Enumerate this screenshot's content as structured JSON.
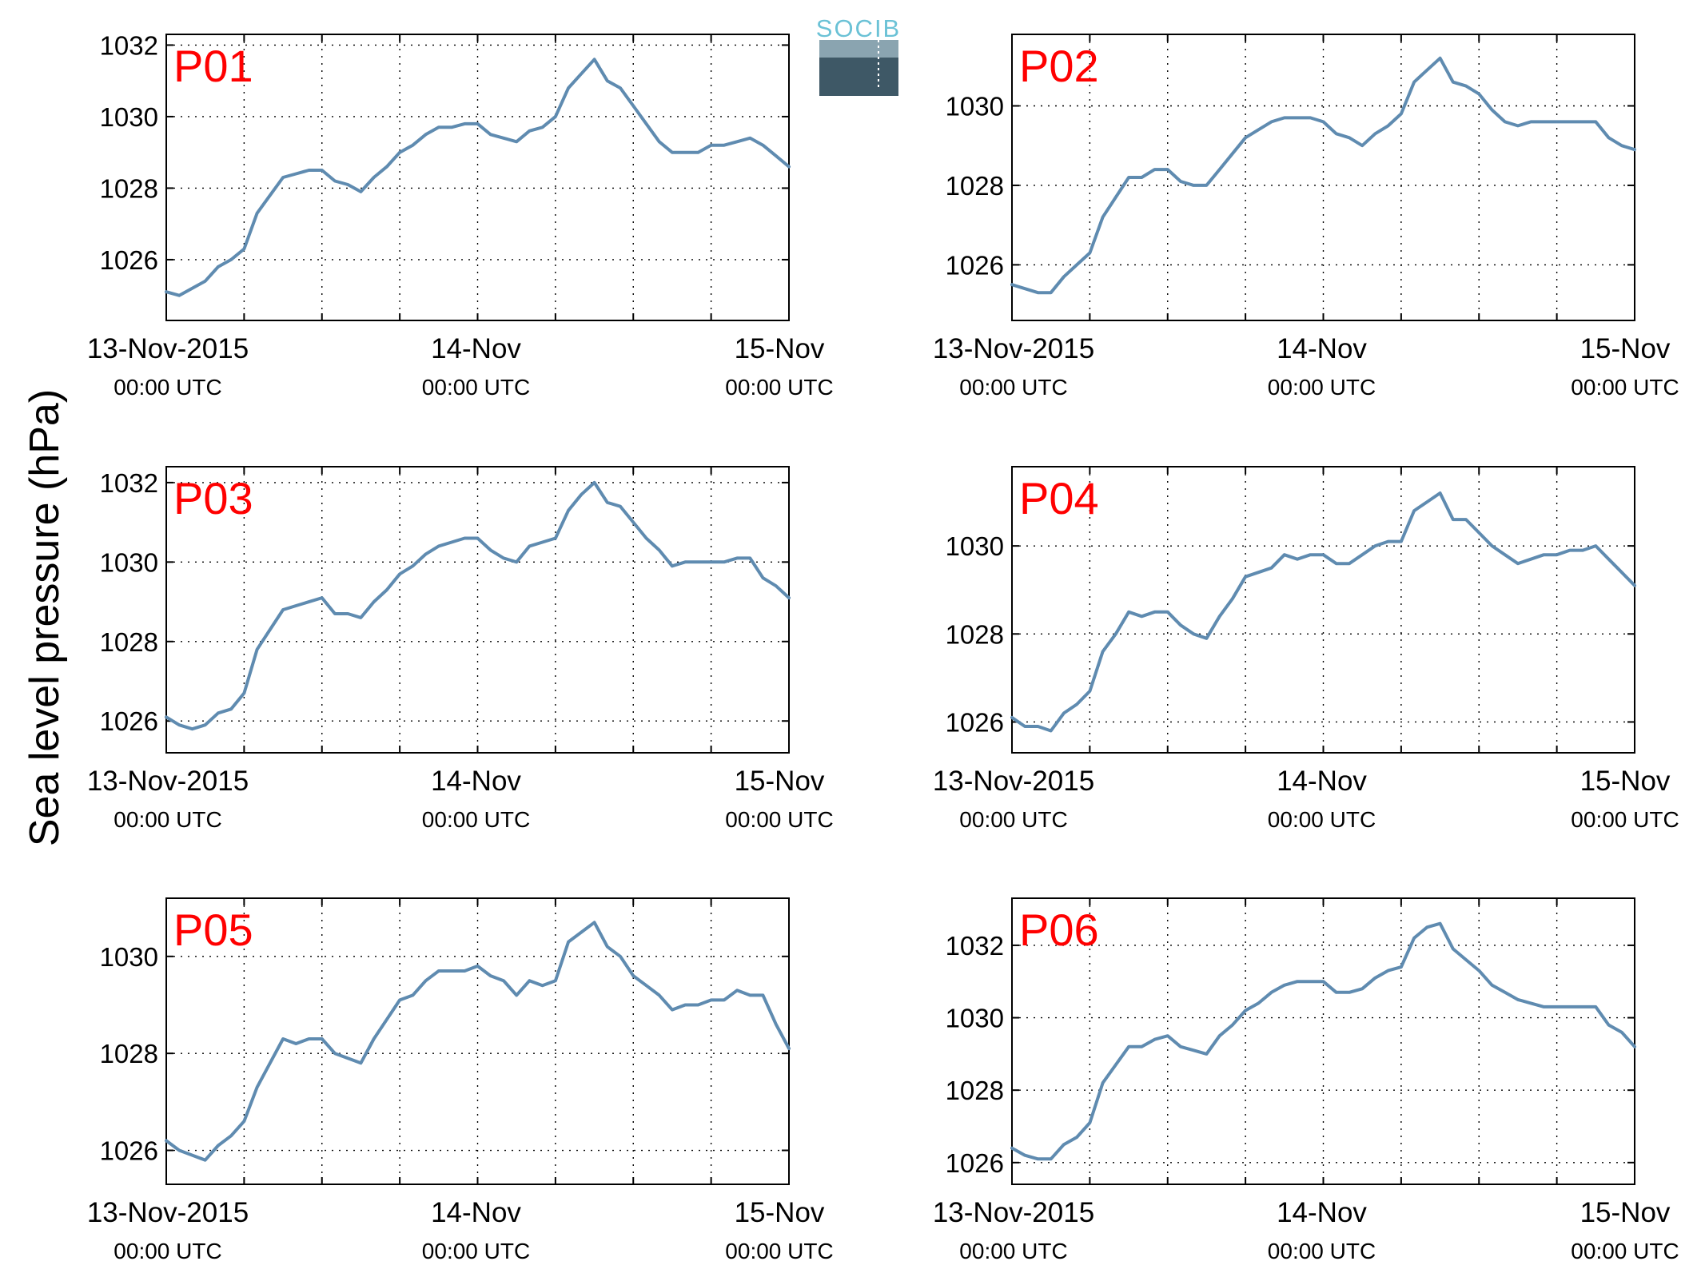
{
  "figure": {
    "ylabel": "Sea level pressure (hPa)",
    "logo_text": "SOCIB",
    "line_color": "#5f8bb0",
    "title_color": "#ff0000"
  },
  "chart_data": [
    {
      "type": "line",
      "title": "P01",
      "xlim": [
        0,
        48
      ],
      "ylim": [
        1024.3,
        1032.3
      ],
      "yticks": [
        1026,
        1028,
        1030,
        1032
      ],
      "xticks": [
        0,
        24,
        48
      ],
      "xticklabels": [
        [
          "13-Nov-2015",
          "00:00 UTC"
        ],
        [
          "14-Nov",
          "00:00 UTC"
        ],
        [
          "15-Nov",
          "00:00 UTC"
        ]
      ],
      "grid": true,
      "x": [
        0,
        1,
        2,
        3,
        4,
        5,
        6,
        7,
        8,
        9,
        10,
        11,
        12,
        13,
        14,
        15,
        16,
        17,
        18,
        19,
        20,
        21,
        22,
        23,
        24,
        25,
        26,
        27,
        28,
        29,
        30,
        31,
        32,
        33,
        34,
        35,
        36,
        37,
        38,
        39,
        40,
        41,
        42,
        43,
        44,
        45,
        46,
        47,
        48
      ],
      "values": [
        1025.1,
        1025.0,
        1025.2,
        1025.4,
        1025.8,
        1026.0,
        1026.3,
        1027.3,
        1027.8,
        1028.3,
        1028.4,
        1028.5,
        1028.5,
        1028.2,
        1028.1,
        1027.9,
        1028.3,
        1028.6,
        1029.0,
        1029.2,
        1029.5,
        1029.7,
        1029.7,
        1029.8,
        1029.8,
        1029.5,
        1029.4,
        1029.3,
        1029.6,
        1029.7,
        1030.0,
        1030.8,
        1031.2,
        1031.6,
        1031.0,
        1030.8,
        1030.3,
        1029.8,
        1029.3,
        1029.0,
        1029.0,
        1029.0,
        1029.2,
        1029.2,
        1029.3,
        1029.4,
        1029.2,
        1028.9,
        1028.6
      ]
    },
    {
      "type": "line",
      "title": "P02",
      "xlim": [
        0,
        48
      ],
      "ylim": [
        1024.6,
        1031.8
      ],
      "yticks": [
        1026,
        1028,
        1030
      ],
      "xticks": [
        0,
        24,
        48
      ],
      "xticklabels": [
        [
          "13-Nov-2015",
          "00:00 UTC"
        ],
        [
          "14-Nov",
          "00:00 UTC"
        ],
        [
          "15-Nov",
          "00:00 UTC"
        ]
      ],
      "grid": true,
      "x": [
        0,
        1,
        2,
        3,
        4,
        5,
        6,
        7,
        8,
        9,
        10,
        11,
        12,
        13,
        14,
        15,
        16,
        17,
        18,
        19,
        20,
        21,
        22,
        23,
        24,
        25,
        26,
        27,
        28,
        29,
        30,
        31,
        32,
        33,
        34,
        35,
        36,
        37,
        38,
        39,
        40,
        41,
        42,
        43,
        44,
        45,
        46,
        47,
        48
      ],
      "values": [
        1025.5,
        1025.4,
        1025.3,
        1025.3,
        1025.7,
        1026.0,
        1026.3,
        1027.2,
        1027.7,
        1028.2,
        1028.2,
        1028.4,
        1028.4,
        1028.1,
        1028.0,
        1028.0,
        1028.4,
        1028.8,
        1029.2,
        1029.4,
        1029.6,
        1029.7,
        1029.7,
        1029.7,
        1029.6,
        1029.3,
        1029.2,
        1029.0,
        1029.3,
        1029.5,
        1029.8,
        1030.6,
        1030.9,
        1031.2,
        1030.6,
        1030.5,
        1030.3,
        1029.9,
        1029.6,
        1029.5,
        1029.6,
        1029.6,
        1029.6,
        1029.6,
        1029.6,
        1029.6,
        1029.2,
        1029.0,
        1028.9
      ]
    },
    {
      "type": "line",
      "title": "P03",
      "xlim": [
        0,
        48
      ],
      "ylim": [
        1025.2,
        1032.4
      ],
      "yticks": [
        1026,
        1028,
        1030,
        1032
      ],
      "xticks": [
        0,
        24,
        48
      ],
      "xticklabels": [
        [
          "13-Nov-2015",
          "00:00 UTC"
        ],
        [
          "14-Nov",
          "00:00 UTC"
        ],
        [
          "15-Nov",
          "00:00 UTC"
        ]
      ],
      "grid": true,
      "x": [
        0,
        1,
        2,
        3,
        4,
        5,
        6,
        7,
        8,
        9,
        10,
        11,
        12,
        13,
        14,
        15,
        16,
        17,
        18,
        19,
        20,
        21,
        22,
        23,
        24,
        25,
        26,
        27,
        28,
        29,
        30,
        31,
        32,
        33,
        34,
        35,
        36,
        37,
        38,
        39,
        40,
        41,
        42,
        43,
        44,
        45,
        46,
        47,
        48
      ],
      "values": [
        1026.1,
        1025.9,
        1025.8,
        1025.9,
        1026.2,
        1026.3,
        1026.7,
        1027.8,
        1028.3,
        1028.8,
        1028.9,
        1029.0,
        1029.1,
        1028.7,
        1028.7,
        1028.6,
        1029.0,
        1029.3,
        1029.7,
        1029.9,
        1030.2,
        1030.4,
        1030.5,
        1030.6,
        1030.6,
        1030.3,
        1030.1,
        1030.0,
        1030.4,
        1030.5,
        1030.6,
        1031.3,
        1031.7,
        1032.0,
        1031.5,
        1031.4,
        1031.0,
        1030.6,
        1030.3,
        1029.9,
        1030.0,
        1030.0,
        1030.0,
        1030.0,
        1030.1,
        1030.1,
        1029.6,
        1029.4,
        1029.1
      ]
    },
    {
      "type": "line",
      "title": "P04",
      "xlim": [
        0,
        48
      ],
      "ylim": [
        1025.3,
        1031.8
      ],
      "yticks": [
        1026,
        1028,
        1030
      ],
      "xticks": [
        0,
        24,
        48
      ],
      "xticklabels": [
        [
          "13-Nov-2015",
          "00:00 UTC"
        ],
        [
          "14-Nov",
          "00:00 UTC"
        ],
        [
          "15-Nov",
          "00:00 UTC"
        ]
      ],
      "grid": true,
      "x": [
        0,
        1,
        2,
        3,
        4,
        5,
        6,
        7,
        8,
        9,
        10,
        11,
        12,
        13,
        14,
        15,
        16,
        17,
        18,
        19,
        20,
        21,
        22,
        23,
        24,
        25,
        26,
        27,
        28,
        29,
        30,
        31,
        32,
        33,
        34,
        35,
        36,
        37,
        38,
        39,
        40,
        41,
        42,
        43,
        44,
        45,
        46,
        47,
        48
      ],
      "values": [
        1026.1,
        1025.9,
        1025.9,
        1025.8,
        1026.2,
        1026.4,
        1026.7,
        1027.6,
        1028.0,
        1028.5,
        1028.4,
        1028.5,
        1028.5,
        1028.2,
        1028.0,
        1027.9,
        1028.4,
        1028.8,
        1029.3,
        1029.4,
        1029.5,
        1029.8,
        1029.7,
        1029.8,
        1029.8,
        1029.6,
        1029.6,
        1029.8,
        1030.0,
        1030.1,
        1030.1,
        1030.8,
        1031.0,
        1031.2,
        1030.6,
        1030.6,
        1030.3,
        1030.0,
        1029.8,
        1029.6,
        1029.7,
        1029.8,
        1029.8,
        1029.9,
        1029.9,
        1030.0,
        1029.7,
        1029.4,
        1029.1
      ]
    },
    {
      "type": "line",
      "title": "P05",
      "xlim": [
        0,
        48
      ],
      "ylim": [
        1025.3,
        1031.2
      ],
      "yticks": [
        1026,
        1028,
        1030
      ],
      "xticks": [
        0,
        24,
        48
      ],
      "xticklabels": [
        [
          "13-Nov-2015",
          "00:00 UTC"
        ],
        [
          "14-Nov",
          "00:00 UTC"
        ],
        [
          "15-Nov",
          "00:00 UTC"
        ]
      ],
      "grid": true,
      "x": [
        0,
        1,
        2,
        3,
        4,
        5,
        6,
        7,
        8,
        9,
        10,
        11,
        12,
        13,
        14,
        15,
        16,
        17,
        18,
        19,
        20,
        21,
        22,
        23,
        24,
        25,
        26,
        27,
        28,
        29,
        30,
        31,
        32,
        33,
        34,
        35,
        36,
        37,
        38,
        39,
        40,
        41,
        42,
        43,
        44,
        45,
        46,
        47,
        48
      ],
      "values": [
        1026.2,
        1026.0,
        1025.9,
        1025.8,
        1026.1,
        1026.3,
        1026.6,
        1027.3,
        1027.8,
        1028.3,
        1028.2,
        1028.3,
        1028.3,
        1028.0,
        1027.9,
        1027.8,
        1028.3,
        1028.7,
        1029.1,
        1029.2,
        1029.5,
        1029.7,
        1029.7,
        1029.7,
        1029.8,
        1029.6,
        1029.5,
        1029.2,
        1029.5,
        1029.4,
        1029.5,
        1030.3,
        1030.5,
        1030.7,
        1030.2,
        1030.0,
        1029.6,
        1029.4,
        1029.2,
        1028.9,
        1029.0,
        1029.0,
        1029.1,
        1029.1,
        1029.3,
        1029.2,
        1029.2,
        1028.6,
        1028.1
      ]
    },
    {
      "type": "line",
      "title": "P06",
      "xlim": [
        0,
        48
      ],
      "ylim": [
        1025.4,
        1033.3
      ],
      "yticks": [
        1026,
        1028,
        1030,
        1032
      ],
      "xticks": [
        0,
        24,
        48
      ],
      "xticklabels": [
        [
          "13-Nov-2015",
          "00:00 UTC"
        ],
        [
          "14-Nov",
          "00:00 UTC"
        ],
        [
          "15-Nov",
          "00:00 UTC"
        ]
      ],
      "grid": true,
      "x": [
        0,
        1,
        2,
        3,
        4,
        5,
        6,
        7,
        8,
        9,
        10,
        11,
        12,
        13,
        14,
        15,
        16,
        17,
        18,
        19,
        20,
        21,
        22,
        23,
        24,
        25,
        26,
        27,
        28,
        29,
        30,
        31,
        32,
        33,
        34,
        35,
        36,
        37,
        38,
        39,
        40,
        41,
        42,
        43,
        44,
        45,
        46,
        47,
        48
      ],
      "values": [
        1026.4,
        1026.2,
        1026.1,
        1026.1,
        1026.5,
        1026.7,
        1027.1,
        1028.2,
        1028.7,
        1029.2,
        1029.2,
        1029.4,
        1029.5,
        1029.2,
        1029.1,
        1029.0,
        1029.5,
        1029.8,
        1030.2,
        1030.4,
        1030.7,
        1030.9,
        1031.0,
        1031.0,
        1031.0,
        1030.7,
        1030.7,
        1030.8,
        1031.1,
        1031.3,
        1031.4,
        1032.2,
        1032.5,
        1032.6,
        1031.9,
        1031.6,
        1031.3,
        1030.9,
        1030.7,
        1030.5,
        1030.4,
        1030.3,
        1030.3,
        1030.3,
        1030.3,
        1030.3,
        1029.8,
        1029.6,
        1029.2
      ]
    }
  ]
}
